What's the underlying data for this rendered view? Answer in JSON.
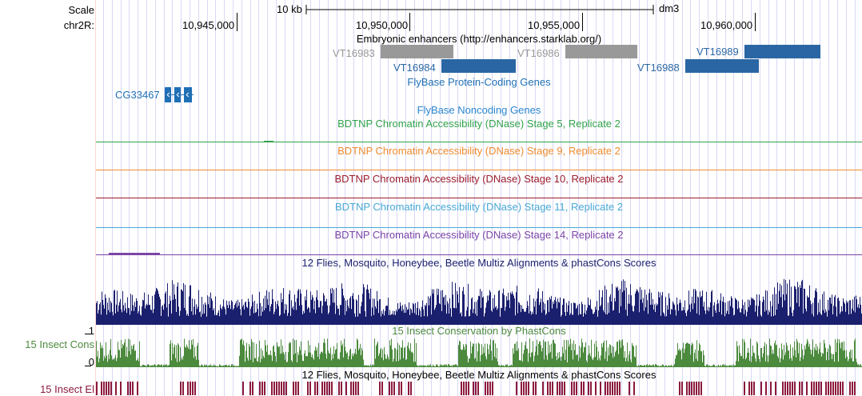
{
  "ruler": {
    "scale_label": "Scale",
    "chrom_label": "chr2R:",
    "scale_bar_label": "10 kb",
    "assembly": "dm3",
    "positions": [
      "10,945,000",
      "10,950,000",
      "10,955,000",
      "10,960,000"
    ]
  },
  "tracks": {
    "enhancers": {
      "title": "Embryonic enhancers (http://enhancers.starklab.org/)",
      "items": [
        {
          "name": "VT16983",
          "color": "#999999"
        },
        {
          "name": "VT16984",
          "color": "#2a66a3"
        },
        {
          "name": "VT16986",
          "color": "#999999"
        },
        {
          "name": "VT16988",
          "color": "#2a66a3"
        },
        {
          "name": "VT16989",
          "color": "#2a66a3"
        }
      ]
    },
    "protein_coding": {
      "title": "FlyBase Protein-Coding Genes",
      "gene": "CG33467",
      "color": "#1f6fb5"
    },
    "noncoding": {
      "title": "FlyBase Noncoding Genes",
      "color": "#2a86cf"
    },
    "dnase": [
      {
        "title": "BDTNP Chromatin Accessibility (DNase) Stage 5, Replicate 2",
        "color": "#31a24a"
      },
      {
        "title": "BDTNP Chromatin Accessibility (DNase) Stage 9, Replicate 2",
        "color": "#f08a2e"
      },
      {
        "title": "BDTNP Chromatin Accessibility (DNase) Stage 10, Replicate 2",
        "color": "#9b1c2c"
      },
      {
        "title": "BDTNP Chromatin Accessibility (DNase) Stage 11, Replicate 2",
        "color": "#48a8d6"
      },
      {
        "title": "BDTNP Chromatin Accessibility (DNase) Stage 14, Replicate 2",
        "color": "#7b44a8"
      }
    ],
    "multiz": {
      "title": "12 Flies, Mosquito, Honeybee, Beetle Multiz Alignments & phastCons Scores",
      "color": "#1a1f6e"
    },
    "cons15": {
      "title": "15 Insect Conservation by PhastCons",
      "left_label": "15 Insect Cons",
      "y_max": "1",
      "y_min": "0",
      "color": "#4c8a3e"
    },
    "elements": {
      "title": "12 Flies, Mosquito, Honeybee, Beetle Multiz Alignments & phastCons Scores",
      "left_label": "15 Insect El",
      "color": "#8b1a3c"
    }
  }
}
